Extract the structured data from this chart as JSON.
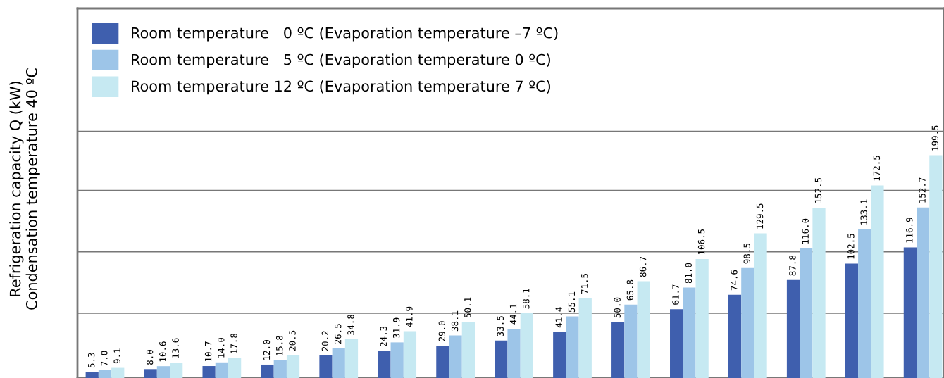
{
  "chart_data": {
    "type": "bar",
    "ylabel": "Refrigeration capacity Q (kW)\nCondensation temperature 40 ºC",
    "categories": [
      null,
      null,
      null,
      null,
      null,
      null,
      null,
      null,
      null,
      null,
      null,
      null,
      null,
      null,
      null
    ],
    "series": [
      {
        "name": "Room temperature   0 ºC (Evaporation temperature –7 ºC)",
        "color": "#3f5fae",
        "values": [
          5.3,
          8.0,
          10.7,
          12.0,
          20.2,
          24.3,
          29.0,
          33.5,
          41.4,
          50.0,
          61.7,
          74.6,
          87.8,
          102.5,
          116.9
        ],
        "value_labels": [
          "5.3",
          "8.0",
          "10.7",
          "12.0",
          "20.2",
          "24.3",
          "29.0",
          "33.5",
          "41.4",
          "50.0",
          "61.7",
          "74.6",
          "87.8",
          "102.5",
          "116.9"
        ]
      },
      {
        "name": "Room temperature   5 ºC (Evaporation temperature 0 ºC)",
        "color": "#9dc5e8",
        "values": [
          7.0,
          10.6,
          14.0,
          15.8,
          26.5,
          31.9,
          38.1,
          44.1,
          55.1,
          65.8,
          81.0,
          98.5,
          116.0,
          133.1,
          152.7
        ],
        "value_labels": [
          "7.0",
          "10.6",
          "14.0",
          "15.8",
          "26.5",
          "31.9",
          "38.1",
          "44.1",
          "55.1",
          "65.8",
          "81.0",
          "98.5",
          "116.0",
          "133.1",
          "152.7"
        ]
      },
      {
        "name": "Room temperature 12 ºC (Evaporation temperature 7 ºC)",
        "color": "#c6e9f2",
        "values": [
          9.1,
          13.6,
          17.8,
          20.5,
          34.8,
          41.9,
          50.1,
          58.1,
          71.5,
          86.7,
          106.5,
          129.5,
          152.5,
          172.5,
          199.5
        ],
        "value_labels": [
          "9.1",
          "13.6",
          "17.8",
          "20.5",
          "34.8",
          "41.9",
          "50.1",
          "58.1",
          "71.5",
          "86.7",
          "106.5",
          "129.5",
          "152.5",
          "172.5",
          "199.5"
        ]
      }
    ],
    "ylim": [
      0,
      331
    ],
    "yticks": [
      {
        "value": 58,
        "label": null
      },
      {
        "value": 113,
        "label": null
      },
      {
        "value": 168,
        "label": null
      },
      {
        "value": 221,
        "label": null
      }
    ],
    "grid": "y",
    "legend": "top left"
  }
}
